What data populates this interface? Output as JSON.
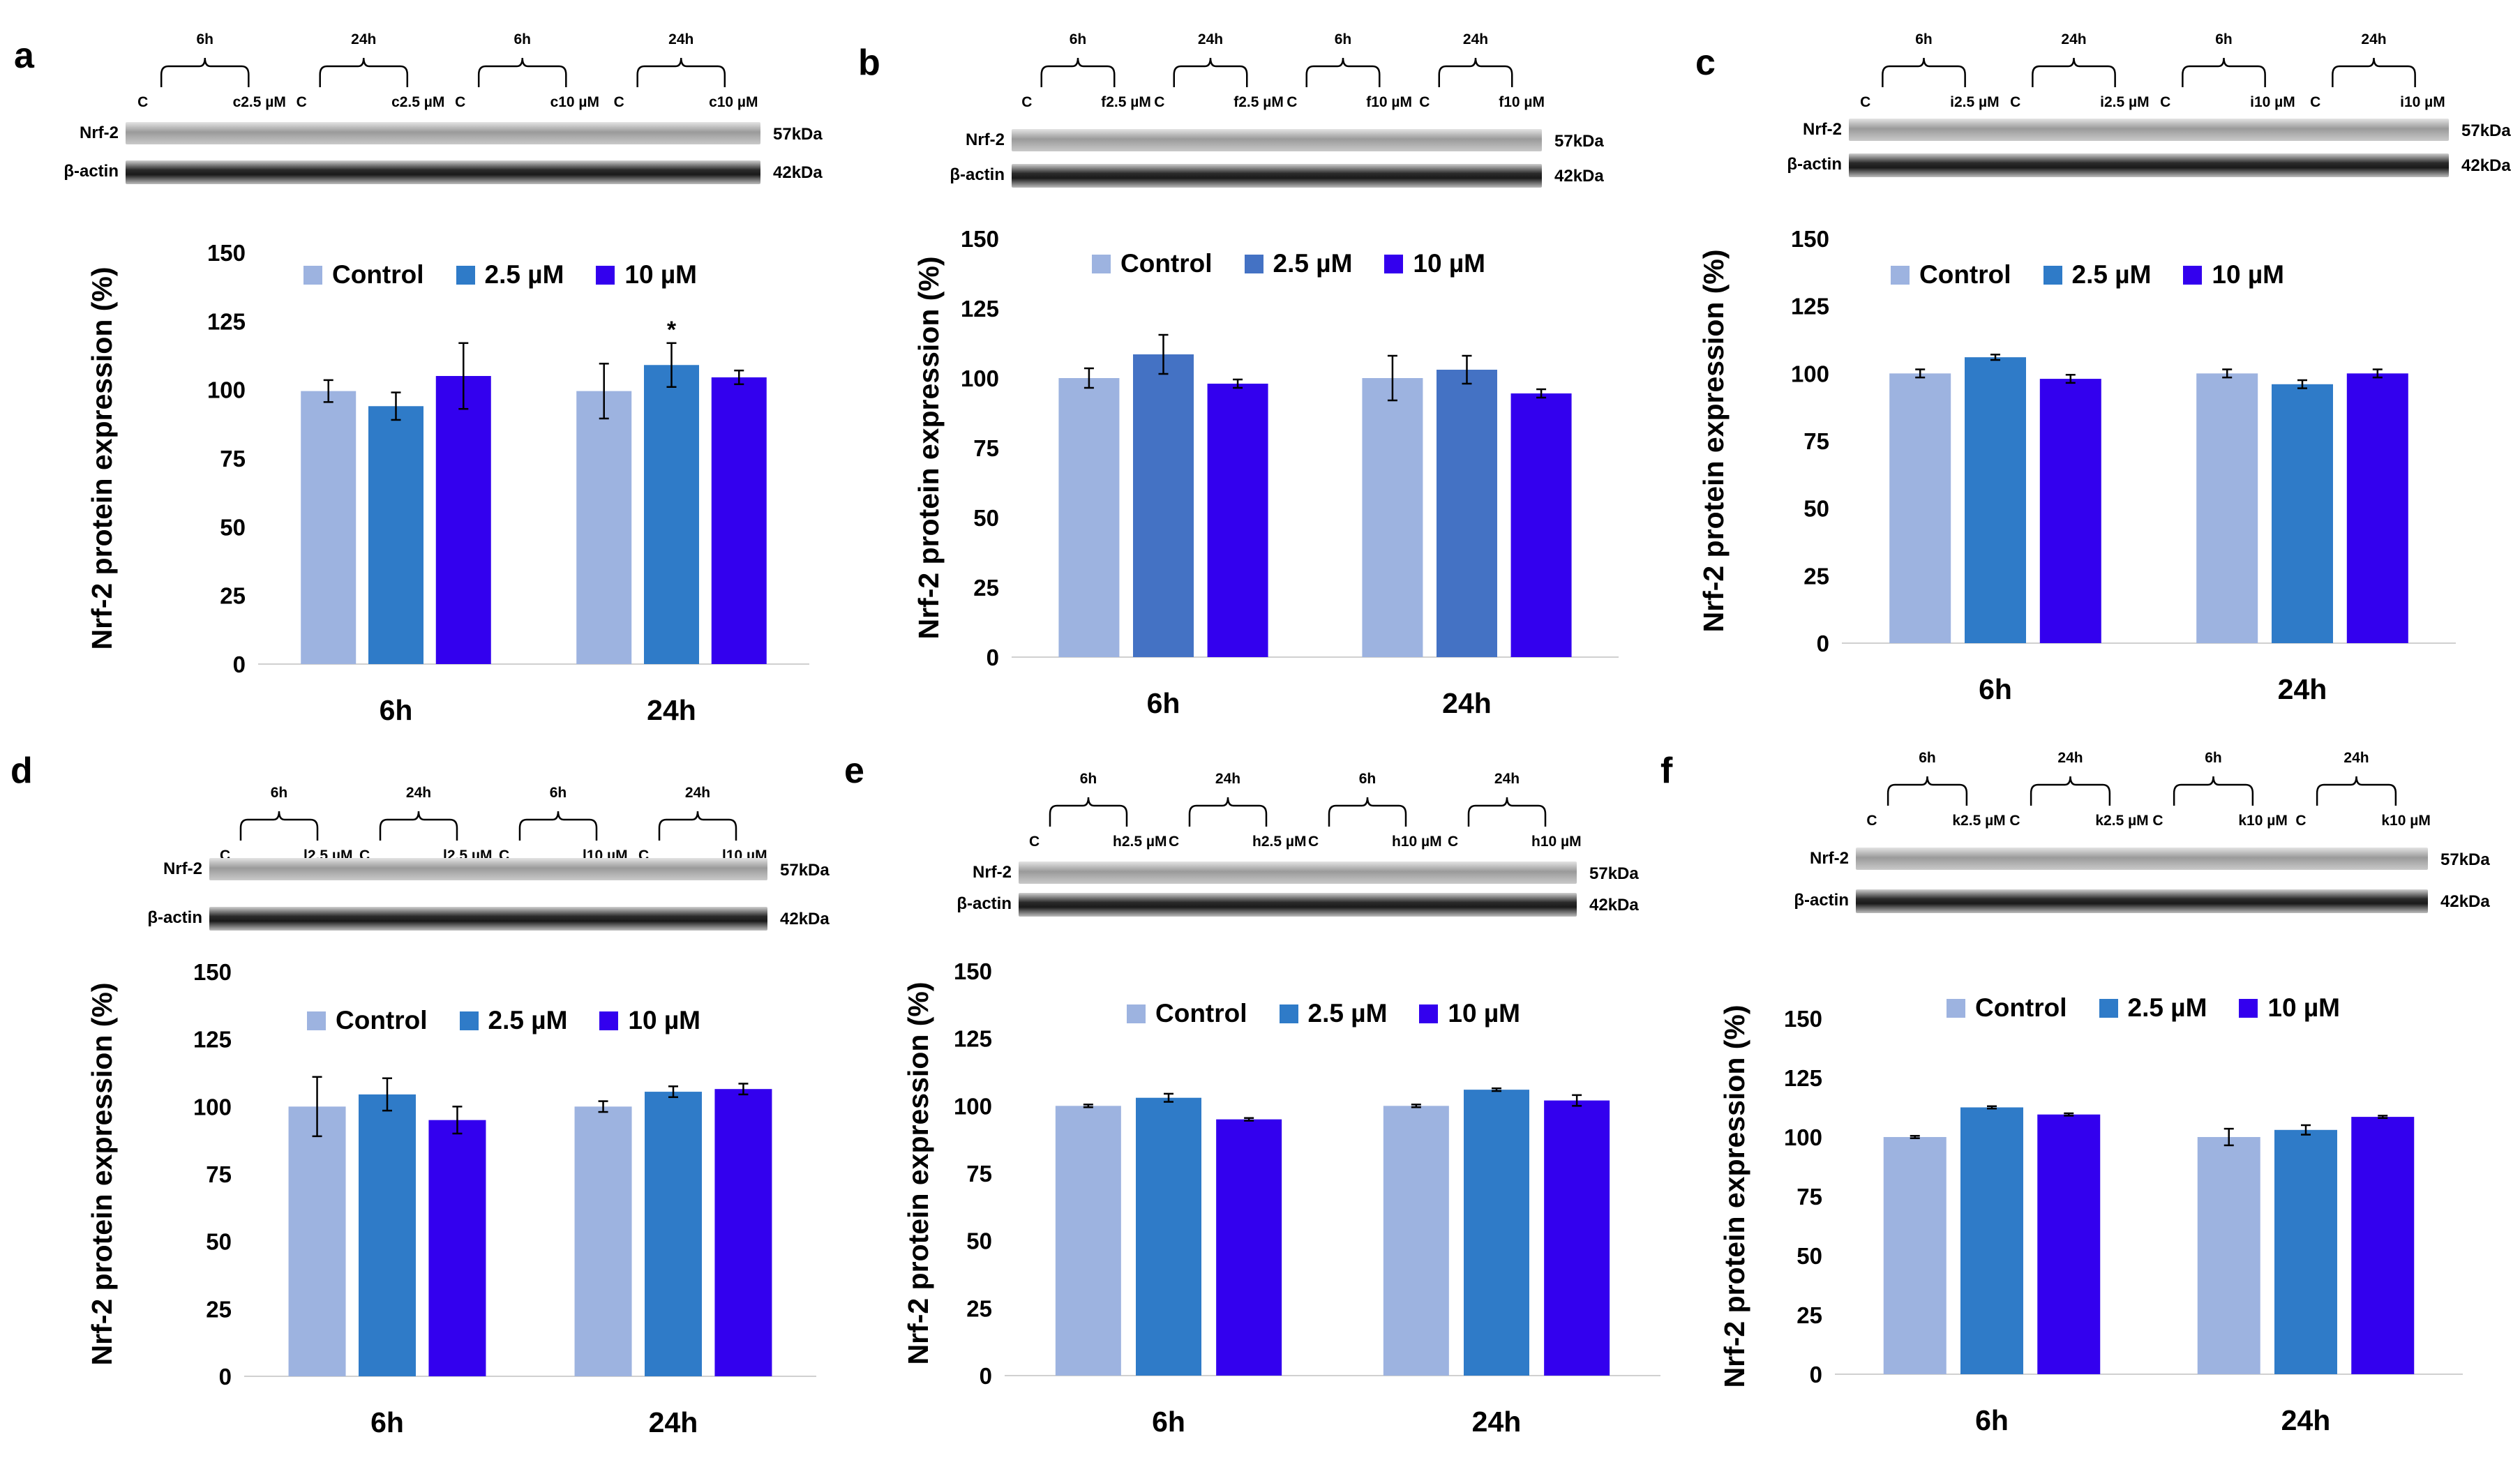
{
  "colors": {
    "control": "#9db3e0",
    "c25": "#2f7bc8",
    "c10": "#3300ee",
    "c25_b": "#4472c4"
  },
  "panels": [
    {
      "letter": "a",
      "blot": {
        "times": [
          "6h",
          "24h",
          "6h",
          "24h"
        ],
        "lanes": [
          "C",
          "c2.5 µM",
          "C",
          "c2.5 µM",
          "C",
          "c10 µM",
          "C",
          "c10 µM"
        ],
        "bands": [
          "Nrf-2",
          "β-actin"
        ],
        "kda": [
          "57kDa",
          "42kDa"
        ]
      },
      "legend": [
        "Control",
        "2.5 µM",
        "10 µM"
      ]
    },
    {
      "letter": "b",
      "blot": {
        "times": [
          "6h",
          "24h",
          "6h",
          "24h"
        ],
        "lanes": [
          "C",
          "f2.5 µM",
          "C",
          "f2.5 µM",
          "C",
          "f10 µM",
          "C",
          "f10 µM"
        ],
        "bands": [
          "Nrf-2",
          "β-actin"
        ],
        "kda": [
          "57kDa",
          "42kDa"
        ]
      },
      "legend": [
        "Control",
        "2.5 µM",
        "10 µM"
      ]
    },
    {
      "letter": "c",
      "blot": {
        "times": [
          "6h",
          "24h",
          "6h",
          "24h"
        ],
        "lanes": [
          "C",
          "i2.5 µM",
          "C",
          "i2.5 µM",
          "C",
          "i10 µM",
          "C",
          "i10 µM"
        ],
        "bands": [
          "Nrf-2",
          "β-actin"
        ],
        "kda": [
          "57kDa",
          "42kDa"
        ]
      },
      "legend": [
        "Control",
        "2.5 µM",
        "10 µM"
      ]
    },
    {
      "letter": "d",
      "blot": {
        "times": [
          "6h",
          "24h",
          "6h",
          "24h"
        ],
        "lanes": [
          "C",
          "l2.5 µM",
          "C",
          "l2.5 µM",
          "C",
          "l10 µM",
          "C",
          "l10 µM"
        ],
        "bands": [
          "Nrf-2",
          "β-actin"
        ],
        "kda": [
          "57kDa",
          "42kDa"
        ]
      },
      "legend": [
        "Control",
        "2.5 µM",
        "10 µM"
      ]
    },
    {
      "letter": "e",
      "blot": {
        "times": [
          "6h",
          "24h",
          "6h",
          "24h"
        ],
        "lanes": [
          "C",
          "h2.5 µM",
          "C",
          "h2.5 µM",
          "C",
          "h10 µM",
          "C",
          "h10 µM"
        ],
        "bands": [
          "Nrf-2",
          "β-actin"
        ],
        "kda": [
          "57kDa",
          "42kDa"
        ]
      },
      "legend": [
        "Control",
        "2.5 µM",
        "10 µM"
      ]
    },
    {
      "letter": "f",
      "blot": {
        "times": [
          "6h",
          "24h",
          "6h",
          "24h"
        ],
        "lanes": [
          "C",
          "k2.5 µM",
          "C",
          "k2.5 µM",
          "C",
          "k10 µM",
          "C",
          "k10 µM"
        ],
        "bands": [
          "Nrf-2",
          "β-actin"
        ],
        "kda": [
          "57kDa",
          "42kDa"
        ]
      },
      "legend": [
        "Control",
        "2.5 µM",
        "10 µM"
      ]
    }
  ],
  "chart_data": [
    {
      "panel": "a",
      "type": "bar",
      "ylabel": "Nrf-2 protein expression (%)",
      "categories": [
        "6h",
        "24h"
      ],
      "ylim": [
        0,
        150
      ],
      "yticks": [
        "0",
        "25",
        "50",
        "75",
        "100",
        "125",
        "150"
      ],
      "series": [
        {
          "name": "Control",
          "values": [
            99.5,
            99.5
          ],
          "errors": [
            4,
            10
          ]
        },
        {
          "name": "2.5 µM",
          "values": [
            94,
            109
          ],
          "errors": [
            5,
            8
          ]
        },
        {
          "name": "10 µM",
          "values": [
            105,
            104.5
          ],
          "errors": [
            12,
            2.5
          ]
        }
      ],
      "significance": [
        {
          "series": 1,
          "category": 1,
          "mark": "*"
        }
      ]
    },
    {
      "panel": "b",
      "type": "bar",
      "ylabel": "Nrf-2 protein expression (%)",
      "categories": [
        "6h",
        "24h"
      ],
      "ylim": [
        0,
        150
      ],
      "yticks": [
        "0",
        "25",
        "50",
        "75",
        "100",
        "125",
        "150"
      ],
      "series": [
        {
          "name": "Control",
          "values": [
            100,
            100
          ],
          "errors": [
            3.5,
            8
          ]
        },
        {
          "name": "2.5 µM",
          "values": [
            108.5,
            103
          ],
          "errors": [
            7,
            5
          ]
        },
        {
          "name": "10 µM",
          "values": [
            98,
            94.5
          ],
          "errors": [
            1.5,
            1.5
          ]
        }
      ]
    },
    {
      "panel": "c",
      "type": "bar",
      "ylabel": "Nrf-2 protein expression (%)",
      "categories": [
        "6h",
        "24h"
      ],
      "ylim": [
        0,
        150
      ],
      "yticks": [
        "0",
        "25",
        "50",
        "75",
        "100",
        "125",
        "150"
      ],
      "series": [
        {
          "name": "Control",
          "values": [
            100,
            100
          ],
          "errors": [
            1.5,
            1.5
          ]
        },
        {
          "name": "2.5 µM",
          "values": [
            106,
            96
          ],
          "errors": [
            1,
            1.5
          ]
        },
        {
          "name": "10 µM",
          "values": [
            98,
            100
          ],
          "errors": [
            1.5,
            1.5
          ]
        }
      ]
    },
    {
      "panel": "d",
      "type": "bar",
      "ylabel": "Nrf-2 protein expression (%)",
      "categories": [
        "6h",
        "24h"
      ],
      "ylim": [
        0,
        150
      ],
      "yticks": [
        "0",
        "25",
        "50",
        "75",
        "100",
        "125",
        "150"
      ],
      "series": [
        {
          "name": "Control",
          "values": [
            100,
            100
          ],
          "errors": [
            11,
            2
          ]
        },
        {
          "name": "2.5 µM",
          "values": [
            104.5,
            105.5
          ],
          "errors": [
            6,
            2
          ]
        },
        {
          "name": "10 µM",
          "values": [
            95,
            106.5
          ],
          "errors": [
            5,
            2
          ]
        }
      ]
    },
    {
      "panel": "e",
      "type": "bar",
      "ylabel": "Nrf-2 protein expression (%)",
      "categories": [
        "6h",
        "24h"
      ],
      "ylim": [
        0,
        150
      ],
      "yticks": [
        "0",
        "25",
        "50",
        "75",
        "100",
        "125",
        "150"
      ],
      "series": [
        {
          "name": "Control",
          "values": [
            100,
            100
          ],
          "errors": [
            0.5,
            0.5
          ]
        },
        {
          "name": "2.5 µM",
          "values": [
            103,
            106
          ],
          "errors": [
            1.5,
            0.5
          ]
        },
        {
          "name": "10 µM",
          "values": [
            95,
            102
          ],
          "errors": [
            0.5,
            2
          ]
        }
      ]
    },
    {
      "panel": "f",
      "type": "bar",
      "ylabel": "Nrf-2 protein expression (%)",
      "categories": [
        "6h",
        "24h"
      ],
      "ylim": [
        0,
        150
      ],
      "yticks": [
        "0",
        "25",
        "50",
        "75",
        "100",
        "125",
        "150"
      ],
      "series": [
        {
          "name": "Control",
          "values": [
            100,
            100
          ],
          "errors": [
            0.5,
            3.5
          ]
        },
        {
          "name": "2.5 µM",
          "values": [
            112.5,
            103
          ],
          "errors": [
            0.5,
            2
          ]
        },
        {
          "name": "10 µM",
          "values": [
            109.5,
            108.5
          ],
          "errors": [
            0.5,
            0.5
          ]
        }
      ]
    }
  ]
}
